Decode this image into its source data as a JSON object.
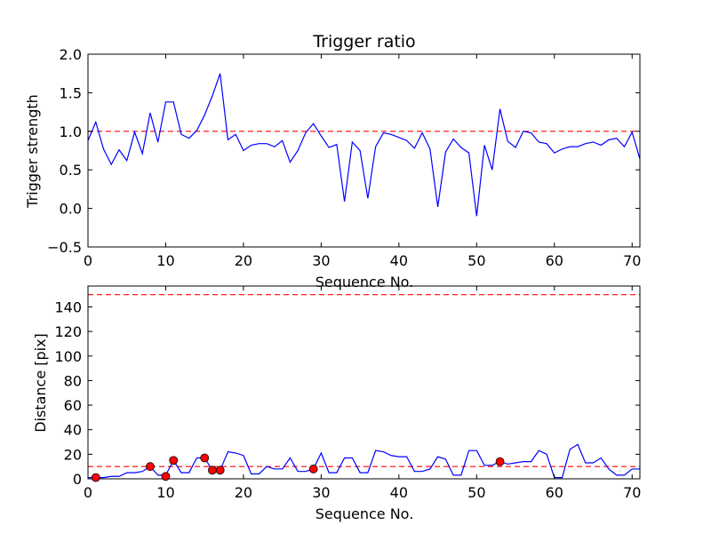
{
  "chart_data": [
    {
      "type": "line",
      "title": "Trigger ratio",
      "xlabel": "Sequence No.",
      "ylabel": "Trigger strength",
      "xlim": [
        0,
        71
      ],
      "ylim": [
        -0.5,
        2.0
      ],
      "xticks": [
        "0",
        "10",
        "20",
        "30",
        "40",
        "50",
        "60",
        "70"
      ],
      "yticks": [
        "−0.5",
        "0.0",
        "0.5",
        "1.0",
        "1.5",
        "2.0"
      ],
      "grid": false,
      "series": [
        {
          "color": "#0000ff",
          "x": [
            0,
            1,
            2,
            3,
            4,
            5,
            6,
            7,
            8,
            9,
            10,
            11,
            12,
            13,
            14,
            15,
            16,
            17,
            18,
            19,
            20,
            21,
            22,
            23,
            24,
            25,
            26,
            27,
            28,
            29,
            30,
            31,
            32,
            33,
            34,
            35,
            36,
            37,
            38,
            39,
            40,
            41,
            42,
            43,
            44,
            45,
            46,
            47,
            48,
            49,
            50,
            51,
            52,
            53,
            54,
            55,
            56,
            57,
            58,
            59,
            60,
            61,
            62,
            63,
            64,
            65,
            66,
            67,
            68,
            69,
            70,
            71
          ],
          "y": [
            0.88,
            1.12,
            0.77,
            0.57,
            0.76,
            0.62,
            0.99,
            0.71,
            1.24,
            0.86,
            1.38,
            1.38,
            0.96,
            0.91,
            1.01,
            1.21,
            1.46,
            1.75,
            0.89,
            0.96,
            0.75,
            0.82,
            0.84,
            0.84,
            0.8,
            0.88,
            0.6,
            0.75,
            0.98,
            1.1,
            0.94,
            0.79,
            0.83,
            0.09,
            0.86,
            0.75,
            0.13,
            0.8,
            0.98,
            0.96,
            0.92,
            0.88,
            0.78,
            0.98,
            0.77,
            0.02,
            0.73,
            0.9,
            0.79,
            0.72,
            -0.1,
            0.82,
            0.5,
            1.29,
            0.87,
            0.79,
            1.0,
            0.98,
            0.86,
            0.84,
            0.72,
            0.77,
            0.8,
            0.8,
            0.84,
            0.86,
            0.82,
            0.89,
            0.91,
            0.8,
            0.99,
            0.64
          ]
        }
      ],
      "reference_lines": [
        {
          "y": 1.0,
          "color": "#ff0000",
          "style": "dashed"
        }
      ]
    },
    {
      "type": "line",
      "xlabel": "Sequence No.",
      "ylabel": "Distance [pix]",
      "xlim": [
        0,
        71
      ],
      "ylim": [
        0,
        157
      ],
      "xticks": [
        "0",
        "10",
        "20",
        "30",
        "40",
        "50",
        "60",
        "70"
      ],
      "yticks": [
        "0",
        "20",
        "40",
        "60",
        "80",
        "100",
        "120",
        "140"
      ],
      "grid": false,
      "series": [
        {
          "color": "#0000ff",
          "x": [
            0,
            1,
            2,
            3,
            4,
            5,
            6,
            7,
            8,
            9,
            10,
            11,
            12,
            13,
            14,
            15,
            16,
            17,
            18,
            19,
            20,
            21,
            22,
            23,
            24,
            25,
            26,
            27,
            28,
            29,
            30,
            31,
            32,
            33,
            34,
            35,
            36,
            37,
            38,
            39,
            40,
            41,
            42,
            43,
            44,
            45,
            46,
            47,
            48,
            49,
            50,
            51,
            52,
            53,
            54,
            55,
            56,
            57,
            58,
            59,
            60,
            61,
            62,
            63,
            64,
            65,
            66,
            67,
            68,
            69,
            70,
            71
          ],
          "y": [
            1,
            1,
            1,
            2,
            2,
            5,
            5,
            6,
            10,
            3,
            3,
            15,
            5,
            5,
            17,
            17,
            7,
            7,
            22,
            21,
            19,
            4,
            4,
            10,
            8,
            8,
            17,
            6,
            6,
            8,
            21,
            5,
            5,
            17,
            17,
            5,
            5,
            23,
            22,
            19,
            18,
            18,
            6,
            6,
            8,
            18,
            16,
            3,
            3,
            23,
            23,
            11,
            11,
            14,
            12,
            13,
            14,
            14,
            23,
            20,
            1,
            1,
            24,
            28,
            13,
            13,
            17,
            8,
            3,
            3,
            8,
            8
          ]
        },
        {
          "name": "",
          "type": "scatter",
          "color": "#ff0000",
          "x": [
            1,
            8,
            10,
            11,
            15,
            16,
            17,
            29,
            53
          ],
          "y": [
            1,
            10,
            2,
            15,
            17,
            7,
            7,
            8,
            14
          ]
        }
      ],
      "reference_lines": [
        {
          "y": 150,
          "color": "#ff0000",
          "style": "dashed"
        },
        {
          "y": 10,
          "color": "#ff0000",
          "style": "dashed"
        }
      ]
    }
  ]
}
